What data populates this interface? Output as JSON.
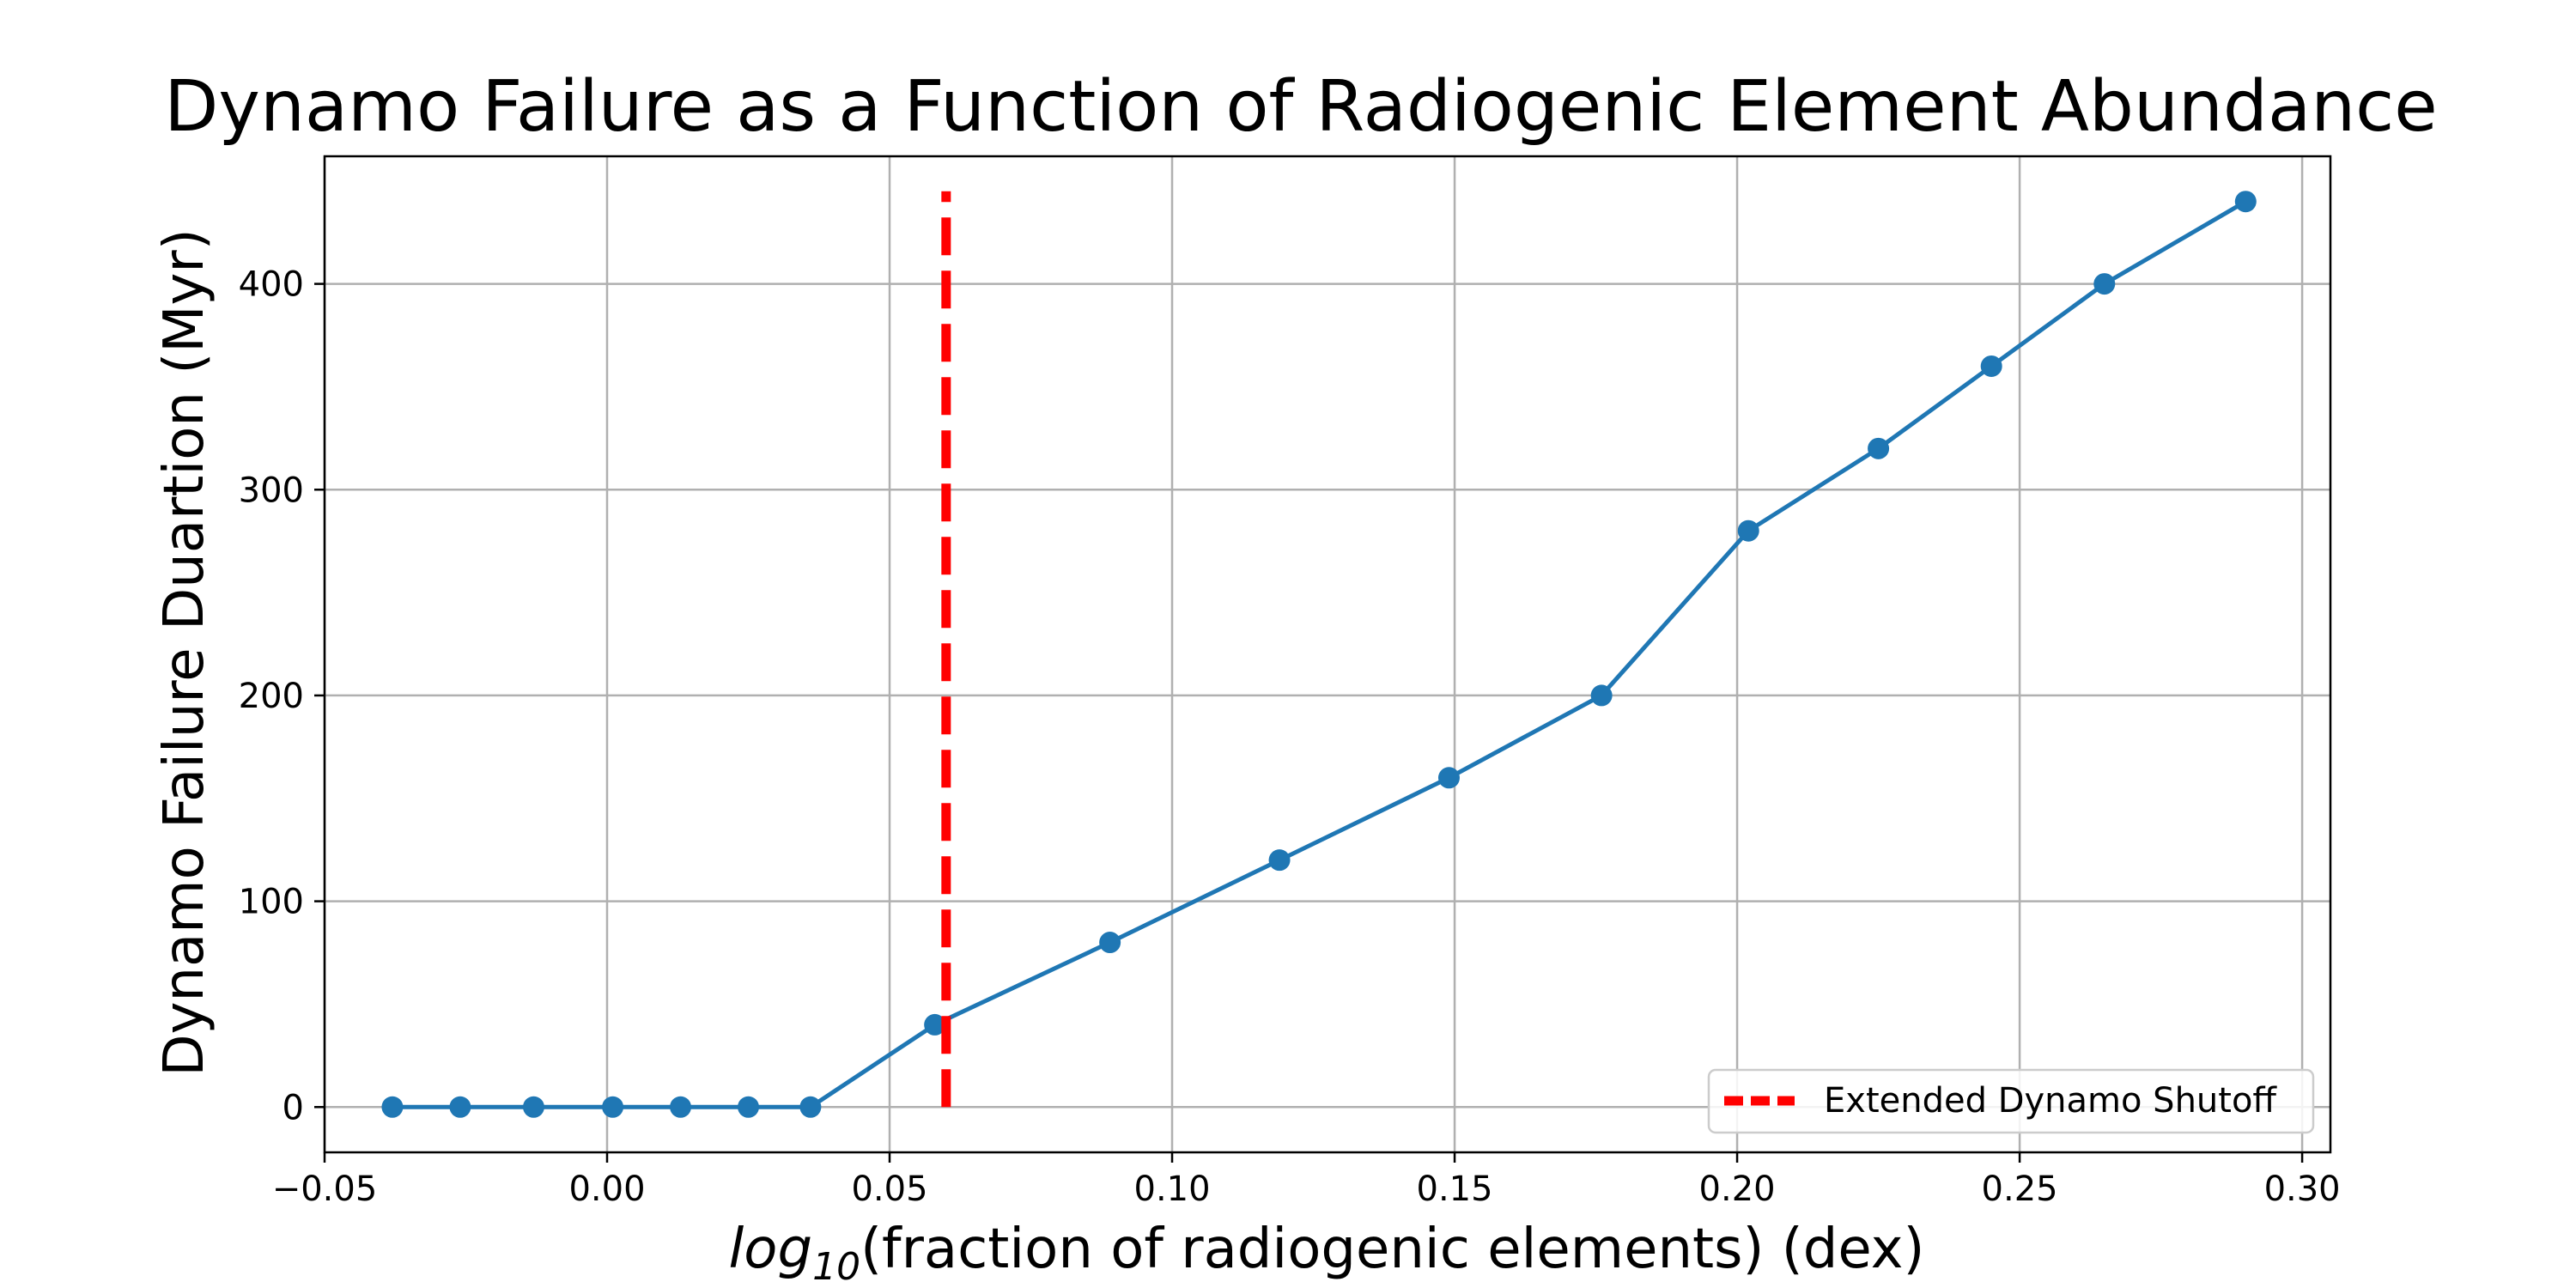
{
  "chart_data": {
    "type": "line",
    "title": "Dynamo Failure as a Function of Radiogenic Element Abundance",
    "xlabel": {
      "prefix": "log",
      "subscript": "10",
      "suffix": "(fraction of radiogenic elements) (dex)"
    },
    "ylabel": "Dynamo Failure Duartion (Myr)",
    "xlim": [
      -0.05,
      0.305
    ],
    "ylim": [
      -22,
      462
    ],
    "x_ticks": [
      -0.05,
      0.0,
      0.05,
      0.1,
      0.15,
      0.2,
      0.25,
      0.3
    ],
    "x_tick_labels": [
      "−0.05",
      "0.00",
      "0.05",
      "0.10",
      "0.15",
      "0.20",
      "0.25",
      "0.30"
    ],
    "y_ticks": [
      0,
      100,
      200,
      300,
      400
    ],
    "y_tick_labels": [
      "0",
      "100",
      "200",
      "300",
      "400"
    ],
    "grid": true,
    "series": [
      {
        "color": "#1f77b4",
        "marker": "circle",
        "x": [
          -0.038,
          -0.026,
          -0.013,
          0.001,
          0.013,
          0.025,
          0.036,
          0.058,
          0.089,
          0.119,
          0.149,
          0.176,
          0.202,
          0.225,
          0.245,
          0.265,
          0.29
        ],
        "y": [
          0,
          0,
          0,
          0,
          0,
          0,
          0,
          40,
          80,
          120,
          160,
          200,
          280,
          320,
          360,
          400,
          440
        ]
      }
    ],
    "reference_lines": [
      {
        "orientation": "vertical",
        "x": 0.06,
        "y_range": [
          0,
          445
        ],
        "style": "dashed",
        "color": "#ff0000",
        "label": "Extended Dynamo Shutoff"
      }
    ],
    "legend": {
      "placement": "lower-right",
      "entries": [
        "Extended Dynamo Shutoff"
      ]
    }
  }
}
